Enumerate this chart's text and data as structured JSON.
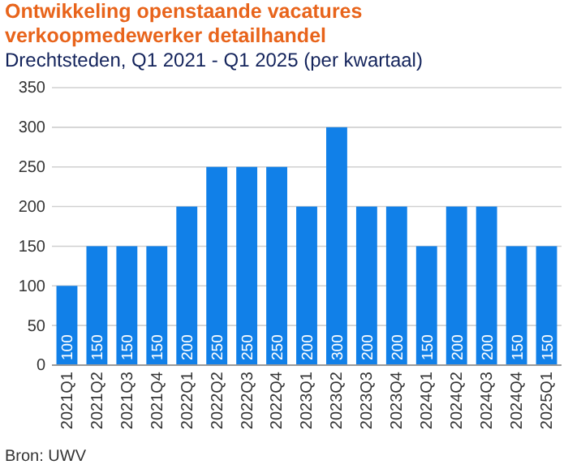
{
  "chart_data": {
    "type": "bar",
    "title": "Ontwikkeling openstaande vacatures verkoopmedewerker detailhandel",
    "subtitle": "Drechtsteden, Q1 2021 - Q1 2025 (per kwartaal)",
    "categories": [
      "2021Q1",
      "2021Q2",
      "2021Q3",
      "2021Q4",
      "2022Q1",
      "2022Q2",
      "2022Q3",
      "2022Q4",
      "2023Q1",
      "2023Q2",
      "2023Q3",
      "2023Q4",
      "2024Q1",
      "2024Q2",
      "2024Q3",
      "2024Q4",
      "2025Q1"
    ],
    "values": [
      100,
      150,
      150,
      150,
      200,
      250,
      250,
      250,
      200,
      300,
      200,
      200,
      150,
      200,
      200,
      150,
      150
    ],
    "color": "#1180e8",
    "ylim": [
      0,
      350
    ],
    "yticks": [
      0,
      50,
      100,
      150,
      200,
      250,
      300,
      350
    ],
    "grid": "y",
    "data_labels": true,
    "annotations": [
      "Bron: UWV"
    ]
  }
}
